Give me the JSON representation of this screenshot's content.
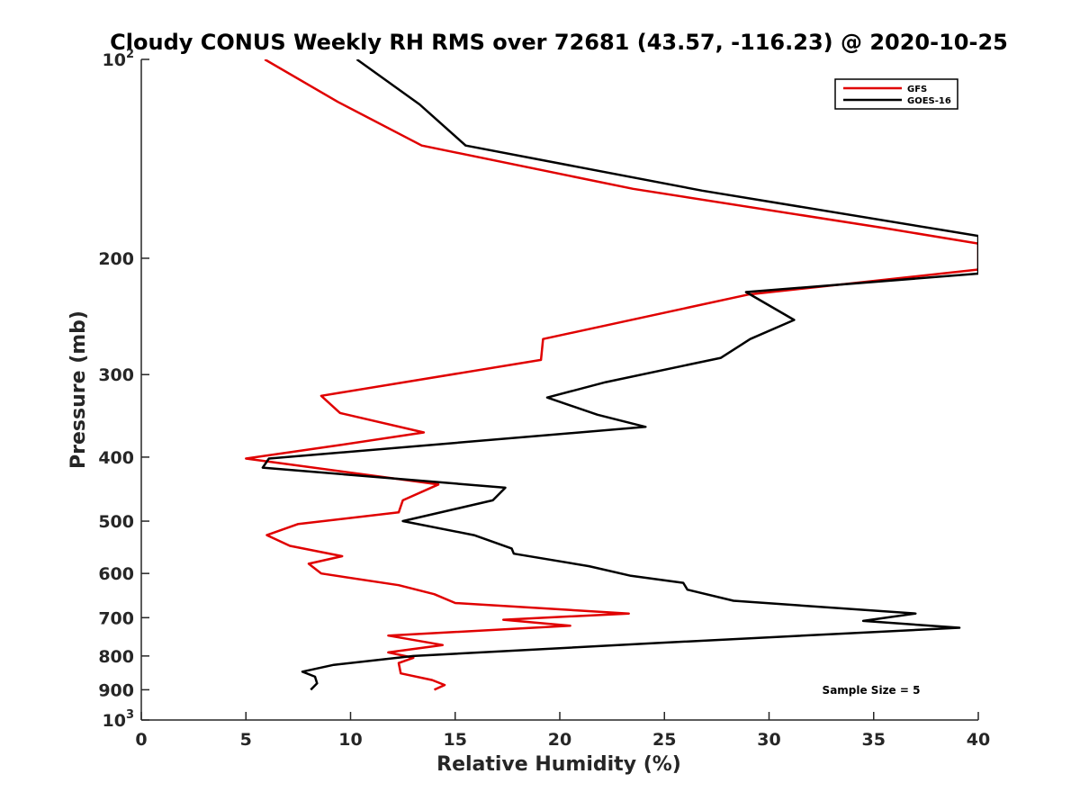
{
  "chart_data": {
    "type": "line",
    "title": "Cloudy CONUS Weekly RH RMS over 72681 (43.57, -116.23) @ 2020-10-25",
    "xlabel": "Relative Humidity (%)",
    "ylabel": "Pressure (mb)",
    "xlim": [
      0,
      40
    ],
    "ylim": [
      100,
      1000
    ],
    "y_scale": "log",
    "y_reversed": true,
    "grid": false,
    "legend_position": "top-right",
    "x_ticks": [
      "0",
      "5",
      "10",
      "15",
      "20",
      "25",
      "30",
      "35",
      "40"
    ],
    "y_ticks": [
      {
        "value": 100,
        "base": "10",
        "exp": "2"
      },
      {
        "value": 200,
        "label": "200"
      },
      {
        "value": 300,
        "label": "300"
      },
      {
        "value": 400,
        "label": "400"
      },
      {
        "value": 500,
        "label": "500"
      },
      {
        "value": 600,
        "label": "600"
      },
      {
        "value": 700,
        "label": "700"
      },
      {
        "value": 800,
        "label": "800"
      },
      {
        "value": 900,
        "label": "900"
      },
      {
        "value": 1000,
        "base": "10",
        "exp": "3"
      }
    ],
    "series": [
      {
        "name": "GFS",
        "color": "#e00000",
        "points": [
          {
            "x": 5.9,
            "p": 100
          },
          {
            "x": 9.4,
            "p": 116
          },
          {
            "x": 13.4,
            "p": 135
          },
          {
            "x": 23.5,
            "p": 157
          },
          {
            "x": 35.5,
            "p": 180
          },
          {
            "x": 40.0,
            "p": 190
          },
          {
            "x": 40.0,
            "p": 208
          },
          {
            "x": 29.0,
            "p": 227
          },
          {
            "x": 19.2,
            "p": 265
          },
          {
            "x": 19.1,
            "p": 285
          },
          {
            "x": 8.6,
            "p": 323
          },
          {
            "x": 9.5,
            "p": 343
          },
          {
            "x": 13.5,
            "p": 367
          },
          {
            "x": 9.6,
            "p": 383
          },
          {
            "x": 5.0,
            "p": 402
          },
          {
            "x": 14.2,
            "p": 440
          },
          {
            "x": 12.5,
            "p": 465
          },
          {
            "x": 12.3,
            "p": 485
          },
          {
            "x": 7.5,
            "p": 505
          },
          {
            "x": 6.0,
            "p": 525
          },
          {
            "x": 7.1,
            "p": 545
          },
          {
            "x": 9.6,
            "p": 565
          },
          {
            "x": 8.0,
            "p": 580
          },
          {
            "x": 8.6,
            "p": 600
          },
          {
            "x": 12.3,
            "p": 625
          },
          {
            "x": 14.0,
            "p": 645
          },
          {
            "x": 15.0,
            "p": 665
          },
          {
            "x": 23.3,
            "p": 690
          },
          {
            "x": 17.3,
            "p": 705
          },
          {
            "x": 20.5,
            "p": 720
          },
          {
            "x": 11.8,
            "p": 745
          },
          {
            "x": 14.4,
            "p": 770
          },
          {
            "x": 11.8,
            "p": 790
          },
          {
            "x": 13.0,
            "p": 805
          },
          {
            "x": 12.3,
            "p": 820
          },
          {
            "x": 12.4,
            "p": 850
          },
          {
            "x": 13.9,
            "p": 870
          },
          {
            "x": 14.5,
            "p": 885
          },
          {
            "x": 14.0,
            "p": 900
          }
        ]
      },
      {
        "name": "GOES-16",
        "color": "#000000",
        "points": [
          {
            "x": 10.3,
            "p": 100
          },
          {
            "x": 13.3,
            "p": 117
          },
          {
            "x": 15.5,
            "p": 135
          },
          {
            "x": 26.8,
            "p": 158
          },
          {
            "x": 40.0,
            "p": 185
          },
          {
            "x": 40.0,
            "p": 211
          },
          {
            "x": 28.9,
            "p": 225
          },
          {
            "x": 31.2,
            "p": 248
          },
          {
            "x": 29.1,
            "p": 265
          },
          {
            "x": 27.7,
            "p": 283
          },
          {
            "x": 22.2,
            "p": 308
          },
          {
            "x": 19.4,
            "p": 325
          },
          {
            "x": 21.8,
            "p": 345
          },
          {
            "x": 24.1,
            "p": 360
          },
          {
            "x": 6.1,
            "p": 402
          },
          {
            "x": 5.8,
            "p": 415
          },
          {
            "x": 17.4,
            "p": 445
          },
          {
            "x": 16.8,
            "p": 465
          },
          {
            "x": 12.5,
            "p": 500
          },
          {
            "x": 15.9,
            "p": 525
          },
          {
            "x": 17.7,
            "p": 550
          },
          {
            "x": 17.8,
            "p": 560
          },
          {
            "x": 21.4,
            "p": 585
          },
          {
            "x": 23.4,
            "p": 605
          },
          {
            "x": 25.9,
            "p": 620
          },
          {
            "x": 26.1,
            "p": 635
          },
          {
            "x": 28.3,
            "p": 660
          },
          {
            "x": 37.0,
            "p": 690
          },
          {
            "x": 34.5,
            "p": 708
          },
          {
            "x": 39.1,
            "p": 725
          },
          {
            "x": 24.5,
            "p": 765
          },
          {
            "x": 13.0,
            "p": 800
          },
          {
            "x": 9.2,
            "p": 825
          },
          {
            "x": 7.7,
            "p": 845
          },
          {
            "x": 8.3,
            "p": 860
          },
          {
            "x": 8.4,
            "p": 880
          },
          {
            "x": 8.1,
            "p": 900
          }
        ]
      }
    ],
    "annotation": "Sample Size = 5"
  }
}
